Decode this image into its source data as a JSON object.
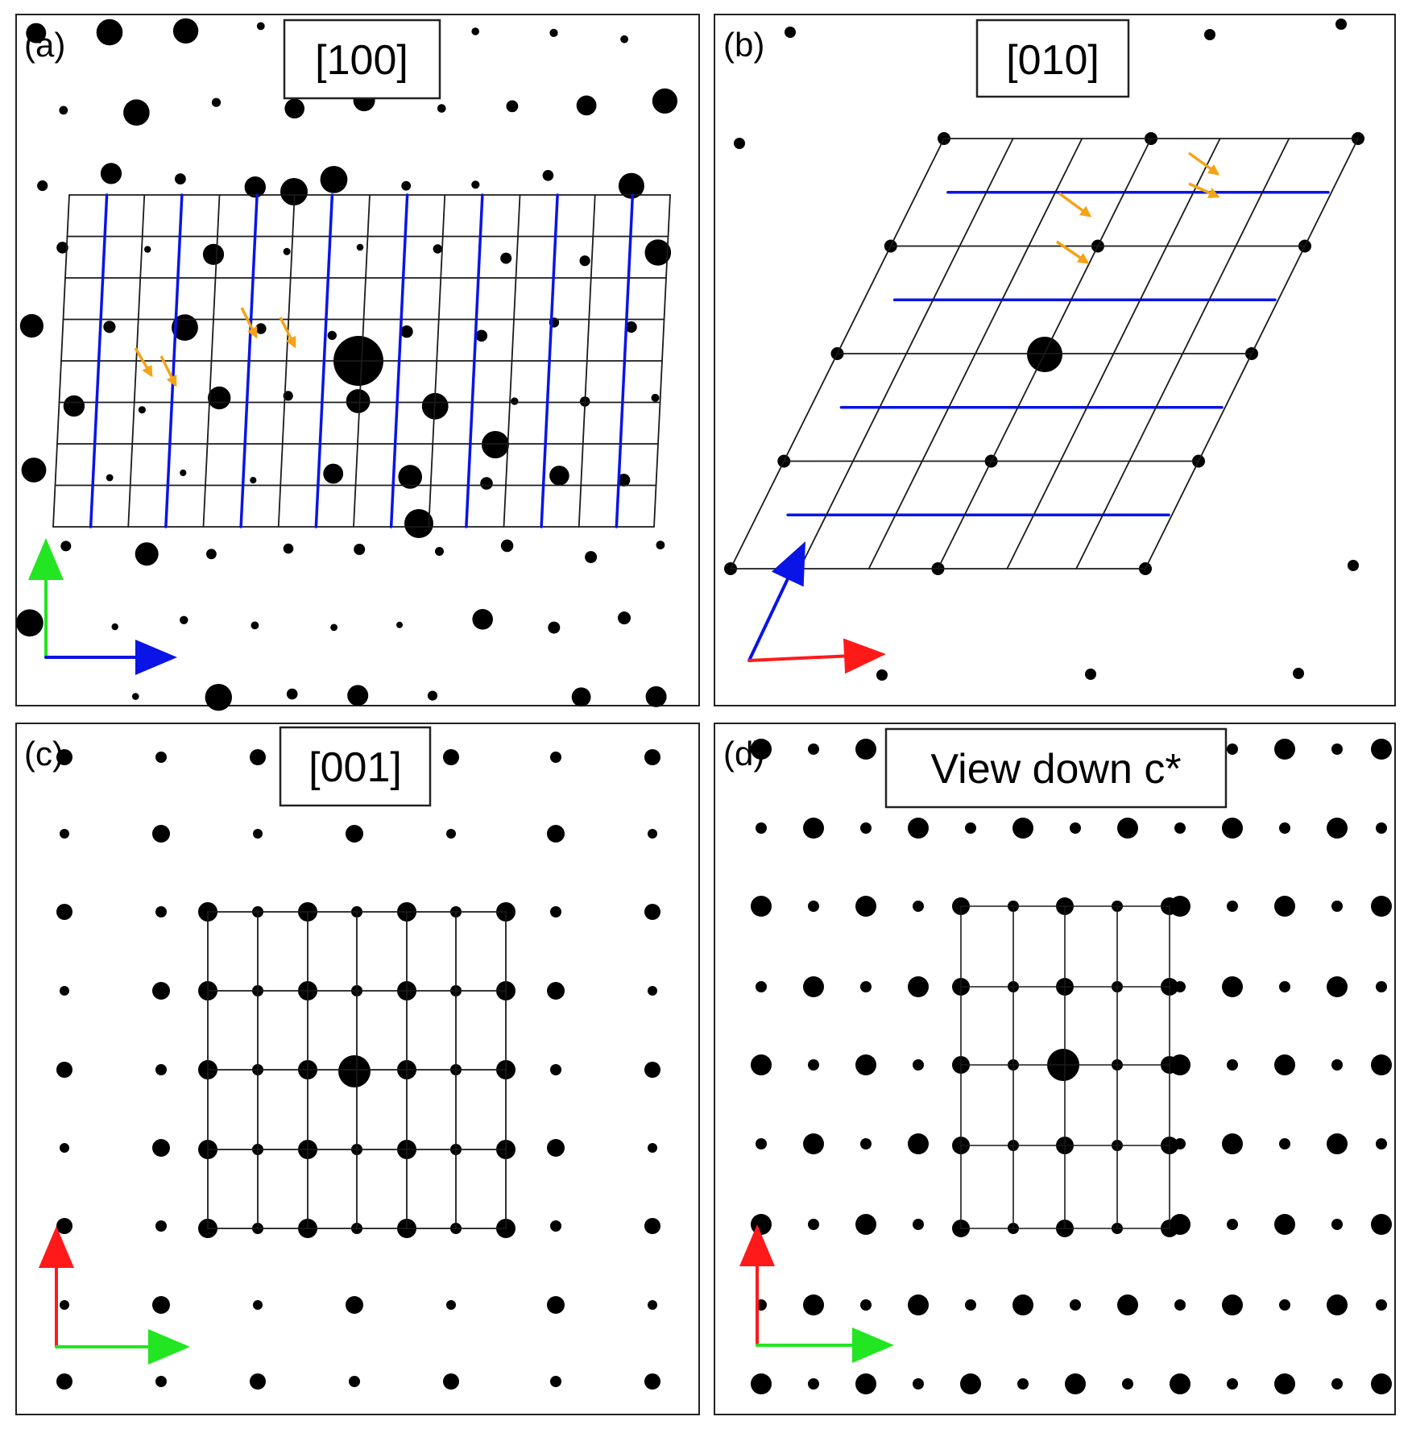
{
  "colors": {
    "grid_line": "#1a1a1a",
    "highlight_line": "#0a14e6",
    "arrow_marker": "#f4a316",
    "axis_red": "#ff1a1a",
    "axis_green": "#22e622",
    "axis_blue": "#0a14e6"
  },
  "panels": [
    {
      "id": "a",
      "tag": "(a)",
      "zone_axis": "[100]",
      "axes": [
        "green",
        "blue"
      ]
    },
    {
      "id": "b",
      "tag": "(b)",
      "zone_axis": "[010]",
      "axes": [
        "blue",
        "red"
      ]
    },
    {
      "id": "c",
      "tag": "(c)",
      "zone_axis": "[001]",
      "axes": [
        "red",
        "green"
      ]
    },
    {
      "id": "d",
      "tag": "(d)",
      "zone_axis": "View down c*",
      "axes": [
        "red",
        "green"
      ]
    }
  ]
}
